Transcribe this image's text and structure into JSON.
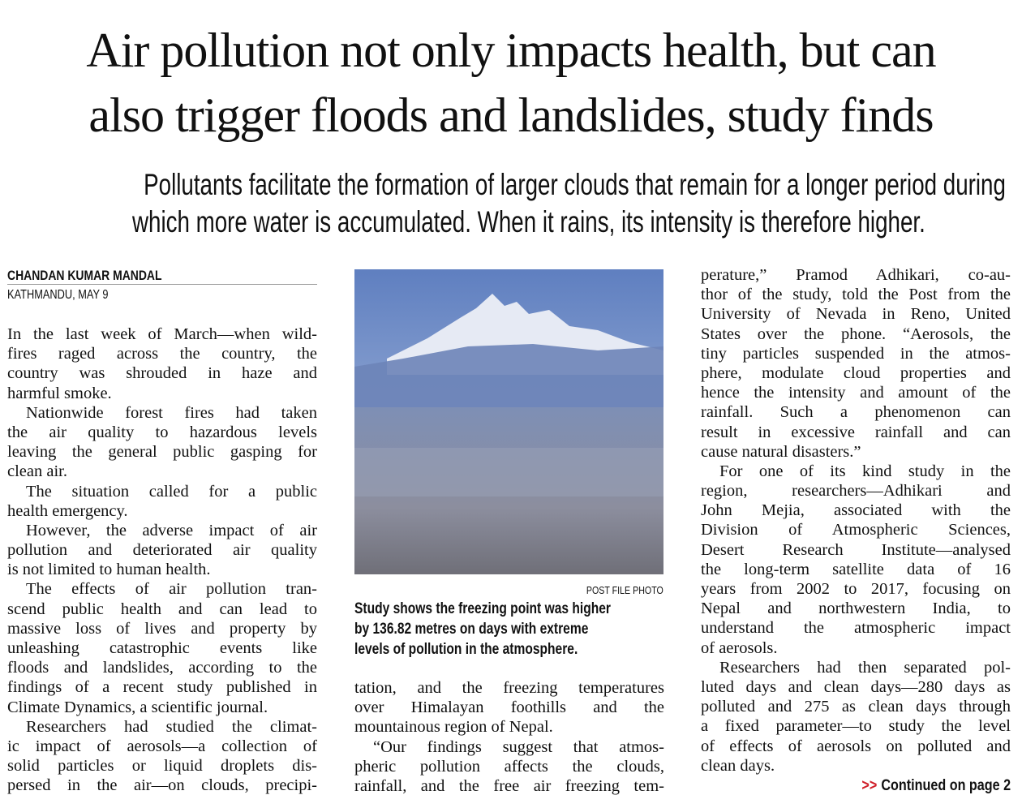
{
  "headline": {
    "lines": [
      "Air pollution not only impacts health, but can",
      "also trigger floods and landslides, study finds"
    ]
  },
  "subheadline": {
    "lines": [
      "Pollutants facilitate the formation of larger clouds that remain for a longer period during",
      "which more water is accumulated. When it rains, its intensity is therefore higher."
    ]
  },
  "byline": "CHANDAN KUMAR MANDAL",
  "dateline": "KATHMANDU, MAY 9",
  "photo": {
    "credit": "POST FILE PHOTO",
    "caption": [
      "Study shows the freezing point was higher",
      "by 136.82 metres on days with extreme",
      "levels of pollution in the atmosphere."
    ]
  },
  "columns": [
    {
      "paragraphs": [
        [
          "In the last week of March—when wild-",
          "fires raged across the country, the",
          "country was shrouded in haze and",
          "harmful smoke."
        ],
        [
          "Nationwide forest fires had taken",
          "the air quality to hazardous levels",
          "leaving the general public gasping for",
          "clean air."
        ],
        [
          "The situation called for a public",
          "health emergency."
        ],
        [
          "However, the adverse impact of air",
          "pollution and deteriorated air quality",
          "is not limited to human health."
        ],
        [
          "The effects of air pollution tran-",
          "scend public health and can lead to",
          "massive loss of lives and property by",
          "unleashing catastrophic events like",
          "floods and landslides, according to the",
          "findings of a recent study published in",
          "Climate Dynamics, a scientific journal."
        ],
        [
          "Researchers had studied the climat-",
          "ic impact of aerosols—a collection of",
          "solid particles or liquid droplets dis-",
          "persed in the air—on clouds, precipi-"
        ]
      ]
    },
    {
      "paragraphs": [
        [
          "tation, and the freezing temperatures",
          "over Himalayan foothills and the",
          "mountainous region of Nepal."
        ],
        [
          "“Our findings suggest that atmos-",
          "pheric pollution affects the clouds,",
          "rainfall, and the free air freezing tem-"
        ]
      ]
    },
    {
      "paragraphs": [
        [
          "perature,” Pramod Adhikari, co-au-",
          "thor of the study, told the Post from the",
          "University of Nevada in Reno, United",
          "States over the phone. “Aerosols, the",
          "tiny particles suspended in the atmos-",
          "phere, modulate cloud properties and",
          "hence the intensity and amount of the",
          "rainfall. Such a phenomenon can",
          "result in excessive rainfall and can",
          "cause natural disasters.”"
        ],
        [
          "For one of its kind study in the",
          "region, researchers—Adhikari and",
          "John Mejia, associated with the",
          "Division of Atmospheric Sciences,",
          "Desert Research Institute—analysed",
          "the long-term satellite data of 16",
          "years from 2002 to 2017, focusing on",
          "Nepal and northwestern India, to",
          "understand the atmospheric impact",
          "of aerosols."
        ],
        [
          "Researchers had then separated pol-",
          "luted days and clean days—280 days as",
          "polluted and 275 as clean days through",
          "a fixed parameter—to study the level",
          "of effects of aerosols on polluted and",
          "clean days."
        ]
      ]
    }
  ],
  "continuation": {
    "marker": ">>",
    "text": "Continued on page 2"
  }
}
